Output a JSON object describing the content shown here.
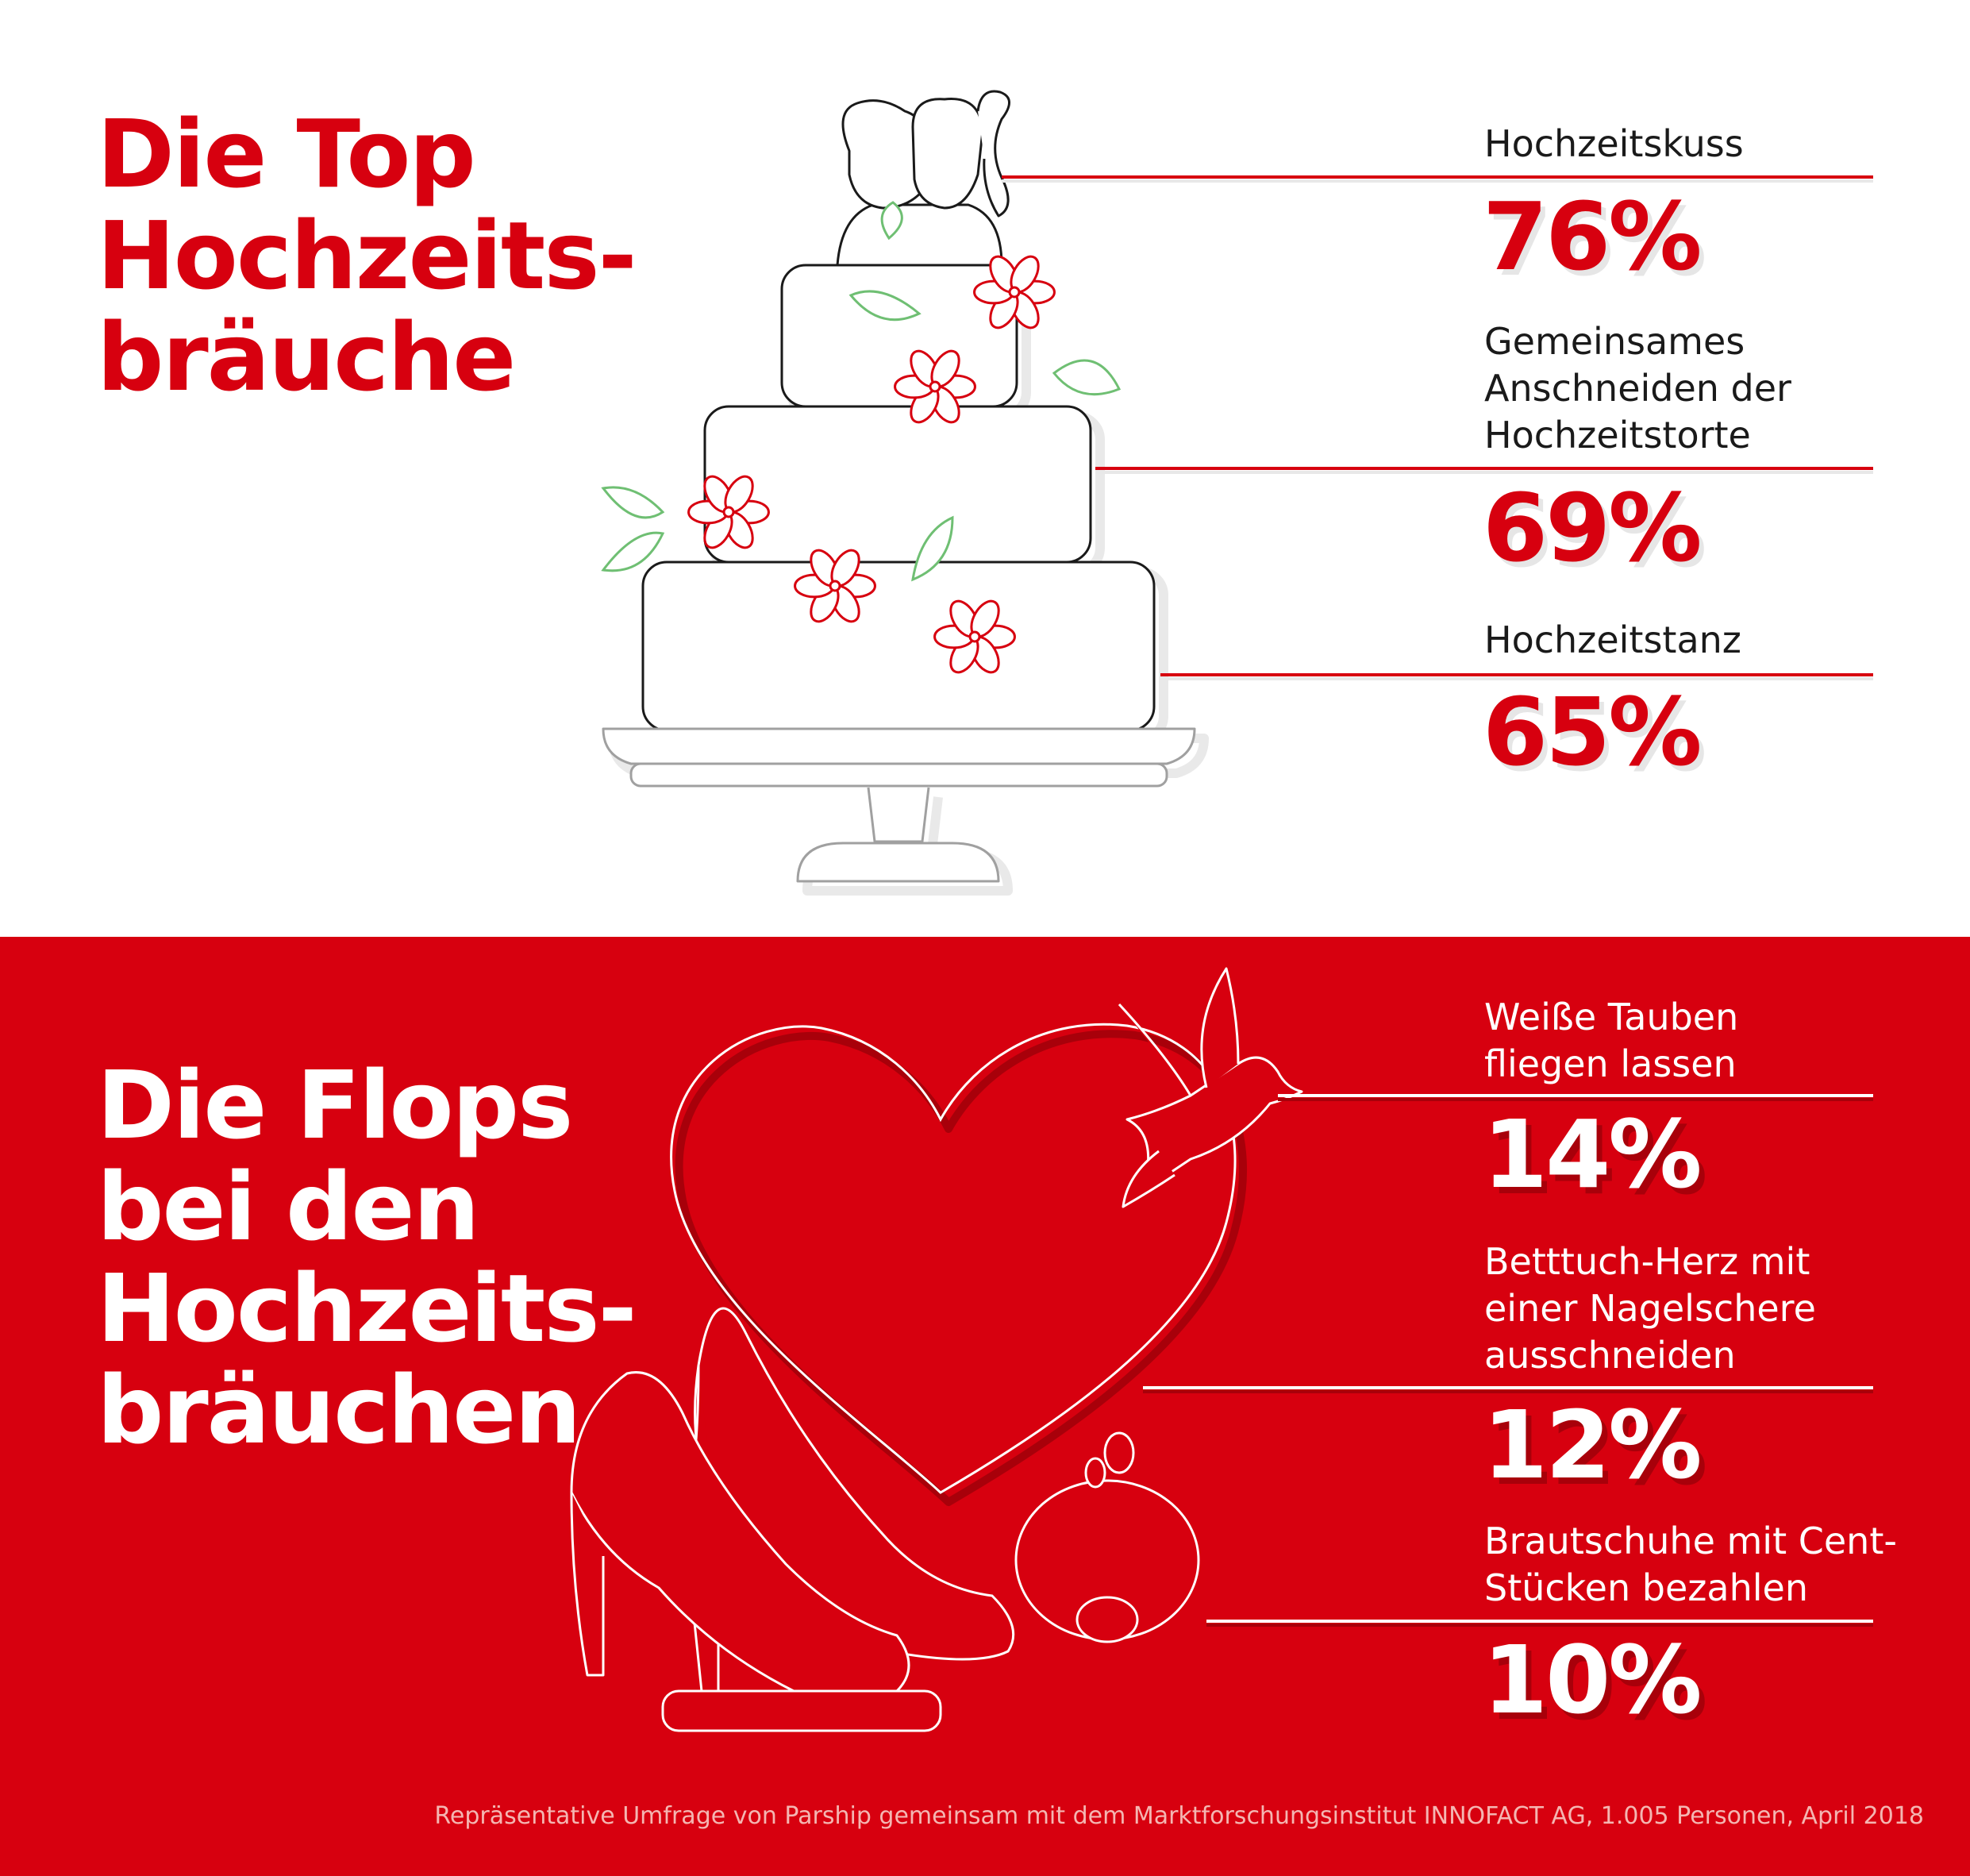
{
  "chart_data": [
    {
      "type": "bar",
      "title": "Die Top Hochzeits-bräuche",
      "title_lines": [
        "Die Top",
        "Hochzeits-",
        "bräuche"
      ],
      "items": [
        {
          "label_lines": [
            "Hochzeitskuss"
          ],
          "value": 76,
          "display": "76%"
        },
        {
          "label_lines": [
            "Gemeinsames",
            "Anschneiden der",
            "Hochzeitstorte"
          ],
          "value": 69,
          "display": "69%"
        },
        {
          "label_lines": [
            "Hochzeitstanz"
          ],
          "value": 65,
          "display": "65%"
        }
      ]
    },
    {
      "type": "bar",
      "title": "Die Flops bei den Hochzeits-bräuchen",
      "title_lines": [
        "Die Flops",
        "bei den",
        "Hochzeits-",
        "bräuchen"
      ],
      "items": [
        {
          "label_lines": [
            "Weiße Tauben",
            "fliegen lassen"
          ],
          "value": 14,
          "display": "14%"
        },
        {
          "label_lines": [
            "Betttuch-Herz mit",
            "einer Nagelschere",
            "ausschneiden"
          ],
          "value": 12,
          "display": "12%"
        },
        {
          "label_lines": [
            "Brautschuhe mit Cent-",
            "Stücken bezahlen"
          ],
          "value": 10,
          "display": "10%"
        }
      ]
    }
  ],
  "footnote": "Repräsentative Umfrage von Parship gemeinsam mit dem Marktforschungsinstitut INNOFACT AG, 1.005 Personen, April 2018",
  "colors": {
    "brand_red": "#d7000f",
    "leaf_green": "#6fbf73",
    "dark_line": "#1a1a1a",
    "white": "#ffffff"
  },
  "illustrations": {
    "top": "wedding-cake-icon",
    "bottom": "heart-dove-shoes-piggybank-icon"
  }
}
